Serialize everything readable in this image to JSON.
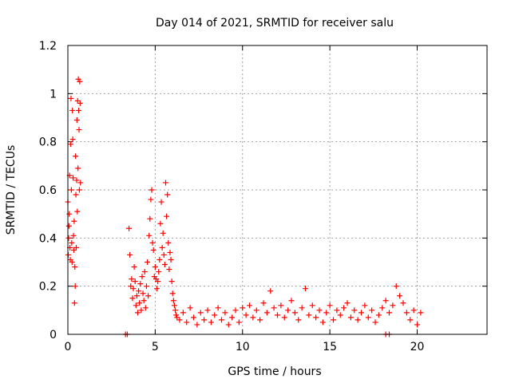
{
  "chart_data": {
    "type": "scatter",
    "title": "Day 014 of 2021, SRMTID for receiver salu",
    "xlabel": "GPS time / hours",
    "ylabel": "SRMTID / TECUs",
    "xlim": [
      0,
      24
    ],
    "ylim": [
      0,
      1.2
    ],
    "xticks": [
      0,
      5,
      10,
      15,
      20
    ],
    "xtick_labels": [
      "0",
      "5",
      "10",
      "15",
      "20"
    ],
    "yticks": [
      0,
      0.2,
      0.4,
      0.6,
      0.8,
      1.0,
      1.2
    ],
    "ytick_labels": [
      "0",
      "0.2",
      "0.4",
      "0.6",
      "0.8",
      "1",
      "1.2"
    ],
    "grid": true,
    "marker": "+",
    "color": "#ff0000",
    "series": [
      {
        "name": "SRMTID",
        "points": [
          [
            0.0,
            0.55
          ],
          [
            0.02,
            0.33
          ],
          [
            0.04,
            0.4
          ],
          [
            0.06,
            0.45
          ],
          [
            0.08,
            0.5
          ],
          [
            0.1,
            0.66
          ],
          [
            0.12,
            0.36
          ],
          [
            0.14,
            0.31
          ],
          [
            0.16,
            0.79
          ],
          [
            0.18,
            0.98
          ],
          [
            0.2,
            0.6
          ],
          [
            0.22,
            0.38
          ],
          [
            0.24,
            0.3
          ],
          [
            0.26,
            0.93
          ],
          [
            0.28,
            0.81
          ],
          [
            0.3,
            0.65
          ],
          [
            0.32,
            0.41
          ],
          [
            0.34,
            0.35
          ],
          [
            0.36,
            0.47
          ],
          [
            0.38,
            0.13
          ],
          [
            0.4,
            0.28
          ],
          [
            0.42,
            0.2
          ],
          [
            0.44,
            0.74
          ],
          [
            0.46,
            0.58
          ],
          [
            0.48,
            0.36
          ],
          [
            0.5,
            0.64
          ],
          [
            0.52,
            0.89
          ],
          [
            0.54,
            0.51
          ],
          [
            0.56,
            0.97
          ],
          [
            0.58,
            0.69
          ],
          [
            0.6,
            1.06
          ],
          [
            0.62,
            0.93
          ],
          [
            0.64,
            0.85
          ],
          [
            0.66,
            0.6
          ],
          [
            0.68,
            1.05
          ],
          [
            0.7,
            0.96
          ],
          [
            0.72,
            0.63
          ],
          [
            3.3,
            0.0
          ],
          [
            3.4,
            0.0
          ],
          [
            3.5,
            0.44
          ],
          [
            3.55,
            0.33
          ],
          [
            3.6,
            0.2
          ],
          [
            3.65,
            0.23
          ],
          [
            3.7,
            0.15
          ],
          [
            3.75,
            0.19
          ],
          [
            3.8,
            0.28
          ],
          [
            3.85,
            0.22
          ],
          [
            3.9,
            0.12
          ],
          [
            3.95,
            0.16
          ],
          [
            4.0,
            0.09
          ],
          [
            4.05,
            0.18
          ],
          [
            4.1,
            0.13
          ],
          [
            4.15,
            0.21
          ],
          [
            4.2,
            0.1
          ],
          [
            4.25,
            0.24
          ],
          [
            4.3,
            0.17
          ],
          [
            4.35,
            0.14
          ],
          [
            4.4,
            0.26
          ],
          [
            4.45,
            0.11
          ],
          [
            4.5,
            0.2
          ],
          [
            4.55,
            0.3
          ],
          [
            4.6,
            0.16
          ],
          [
            4.65,
            0.41
          ],
          [
            4.7,
            0.48
          ],
          [
            4.75,
            0.56
          ],
          [
            4.8,
            0.6
          ],
          [
            4.85,
            0.38
          ],
          [
            4.9,
            0.35
          ],
          [
            4.95,
            0.24
          ],
          [
            5.0,
            0.28
          ],
          [
            5.05,
            0.23
          ],
          [
            5.1,
            0.19
          ],
          [
            5.15,
            0.22
          ],
          [
            5.2,
            0.26
          ],
          [
            5.25,
            0.31
          ],
          [
            5.3,
            0.46
          ],
          [
            5.35,
            0.55
          ],
          [
            5.4,
            0.36
          ],
          [
            5.45,
            0.42
          ],
          [
            5.5,
            0.33
          ],
          [
            5.55,
            0.29
          ],
          [
            5.6,
            0.63
          ],
          [
            5.65,
            0.49
          ],
          [
            5.7,
            0.58
          ],
          [
            5.75,
            0.38
          ],
          [
            5.8,
            0.27
          ],
          [
            5.85,
            0.34
          ],
          [
            5.9,
            0.31
          ],
          [
            5.95,
            0.22
          ],
          [
            6.0,
            0.17
          ],
          [
            6.05,
            0.14
          ],
          [
            6.1,
            0.12
          ],
          [
            6.15,
            0.1
          ],
          [
            6.2,
            0.08
          ],
          [
            6.25,
            0.07
          ],
          [
            6.4,
            0.06
          ],
          [
            6.6,
            0.09
          ],
          [
            6.8,
            0.05
          ],
          [
            7.0,
            0.11
          ],
          [
            7.2,
            0.07
          ],
          [
            7.4,
            0.04
          ],
          [
            7.6,
            0.09
          ],
          [
            7.8,
            0.06
          ],
          [
            8.0,
            0.1
          ],
          [
            8.2,
            0.05
          ],
          [
            8.4,
            0.08
          ],
          [
            8.6,
            0.11
          ],
          [
            8.8,
            0.06
          ],
          [
            9.0,
            0.09
          ],
          [
            9.2,
            0.04
          ],
          [
            9.4,
            0.07
          ],
          [
            9.6,
            0.1
          ],
          [
            9.8,
            0.05
          ],
          [
            10.0,
            0.11
          ],
          [
            10.2,
            0.08
          ],
          [
            10.4,
            0.12
          ],
          [
            10.6,
            0.07
          ],
          [
            10.8,
            0.1
          ],
          [
            11.0,
            0.06
          ],
          [
            11.2,
            0.13
          ],
          [
            11.4,
            0.09
          ],
          [
            11.6,
            0.18
          ],
          [
            11.8,
            0.11
          ],
          [
            12.0,
            0.08
          ],
          [
            12.2,
            0.12
          ],
          [
            12.4,
            0.07
          ],
          [
            12.6,
            0.1
          ],
          [
            12.8,
            0.14
          ],
          [
            13.0,
            0.09
          ],
          [
            13.2,
            0.06
          ],
          [
            13.4,
            0.11
          ],
          [
            13.6,
            0.19
          ],
          [
            13.8,
            0.08
          ],
          [
            14.0,
            0.12
          ],
          [
            14.2,
            0.07
          ],
          [
            14.4,
            0.1
          ],
          [
            14.6,
            0.05
          ],
          [
            14.8,
            0.09
          ],
          [
            15.0,
            0.12
          ],
          [
            15.2,
            0.06
          ],
          [
            15.4,
            0.1
          ],
          [
            15.6,
            0.08
          ],
          [
            15.8,
            0.11
          ],
          [
            16.0,
            0.13
          ],
          [
            16.2,
            0.07
          ],
          [
            16.4,
            0.1
          ],
          [
            16.6,
            0.06
          ],
          [
            16.8,
            0.09
          ],
          [
            17.0,
            0.12
          ],
          [
            17.2,
            0.07
          ],
          [
            17.4,
            0.1
          ],
          [
            17.6,
            0.05
          ],
          [
            17.8,
            0.08
          ],
          [
            18.0,
            0.11
          ],
          [
            18.2,
            0.14
          ],
          [
            18.4,
            0.09
          ],
          [
            18.6,
            0.12
          ],
          [
            18.8,
            0.2
          ],
          [
            19.0,
            0.16
          ],
          [
            19.2,
            0.13
          ],
          [
            19.4,
            0.09
          ],
          [
            19.6,
            0.06
          ],
          [
            19.8,
            0.1
          ],
          [
            20.0,
            0.04
          ],
          [
            20.2,
            0.09
          ],
          [
            18.2,
            0.0
          ],
          [
            18.4,
            0.0
          ]
        ]
      }
    ]
  }
}
